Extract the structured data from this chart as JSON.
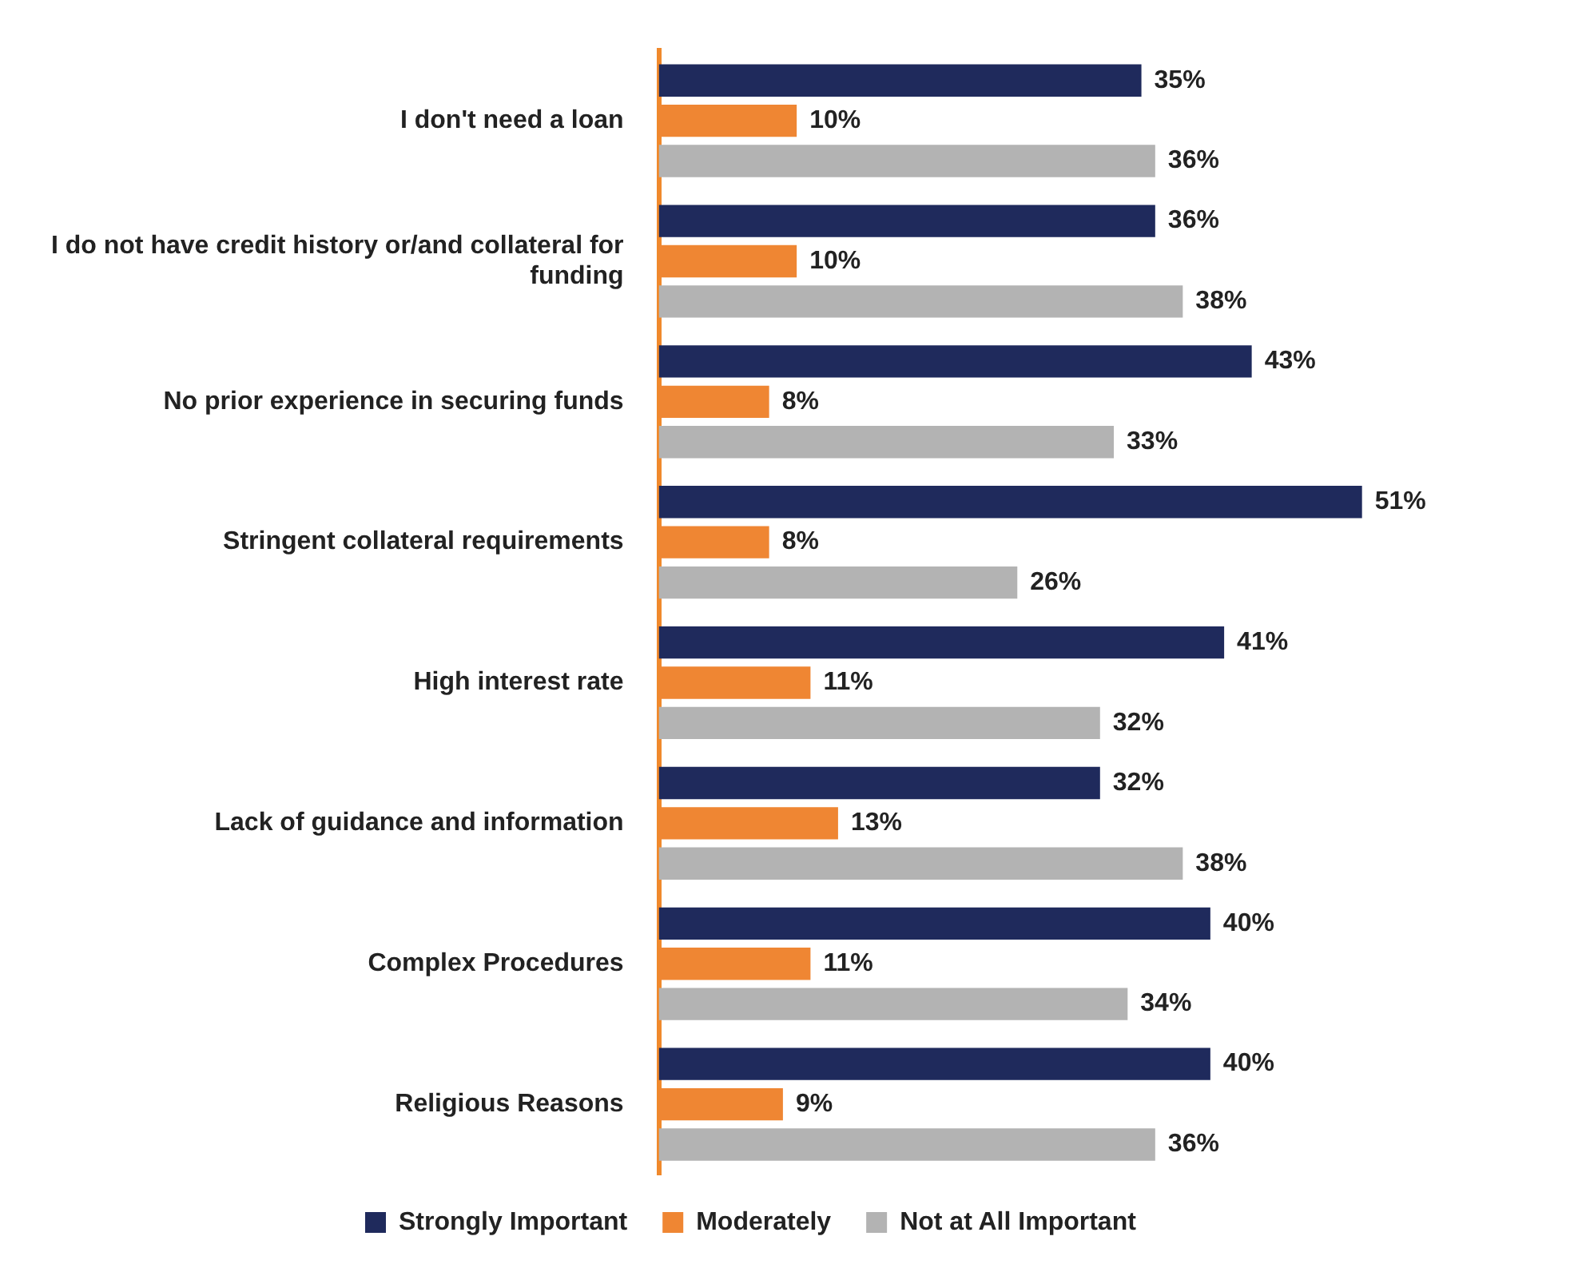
{
  "chart_data": {
    "type": "bar",
    "orientation": "horizontal",
    "categories": [
      "I don't need a loan",
      "I do not have credit history or/and collateral for funding",
      "No prior experience in securing funds",
      "Stringent collateral requirements",
      "High interest rate",
      "Lack of guidance and information",
      "Complex Procedures",
      "Religious Reasons"
    ],
    "series": [
      {
        "name": "Strongly Important",
        "color": "#1f2a5c",
        "values": [
          35,
          36,
          43,
          51,
          41,
          32,
          40,
          40
        ],
        "value_labels": [
          "35%",
          "36%",
          "43%",
          "51%",
          "41%",
          "32%",
          "40%",
          "40%"
        ]
      },
      {
        "name": "Moderately",
        "color": "#ef8633",
        "values": [
          10,
          10,
          8,
          8,
          11,
          13,
          11,
          9
        ],
        "value_labels": [
          "10%",
          "10%",
          "8%",
          "8%",
          "11%",
          "13%",
          "11%",
          "9%"
        ]
      },
      {
        "name": "Not at All Important",
        "color": "#b3b3b3",
        "values": [
          36,
          38,
          33,
          26,
          32,
          38,
          34,
          36
        ],
        "value_labels": [
          "36%",
          "38%",
          "33%",
          "26%",
          "32%",
          "38%",
          "34%",
          "36%"
        ]
      }
    ],
    "tick_labels": "y",
    "legend": "bottom"
  }
}
